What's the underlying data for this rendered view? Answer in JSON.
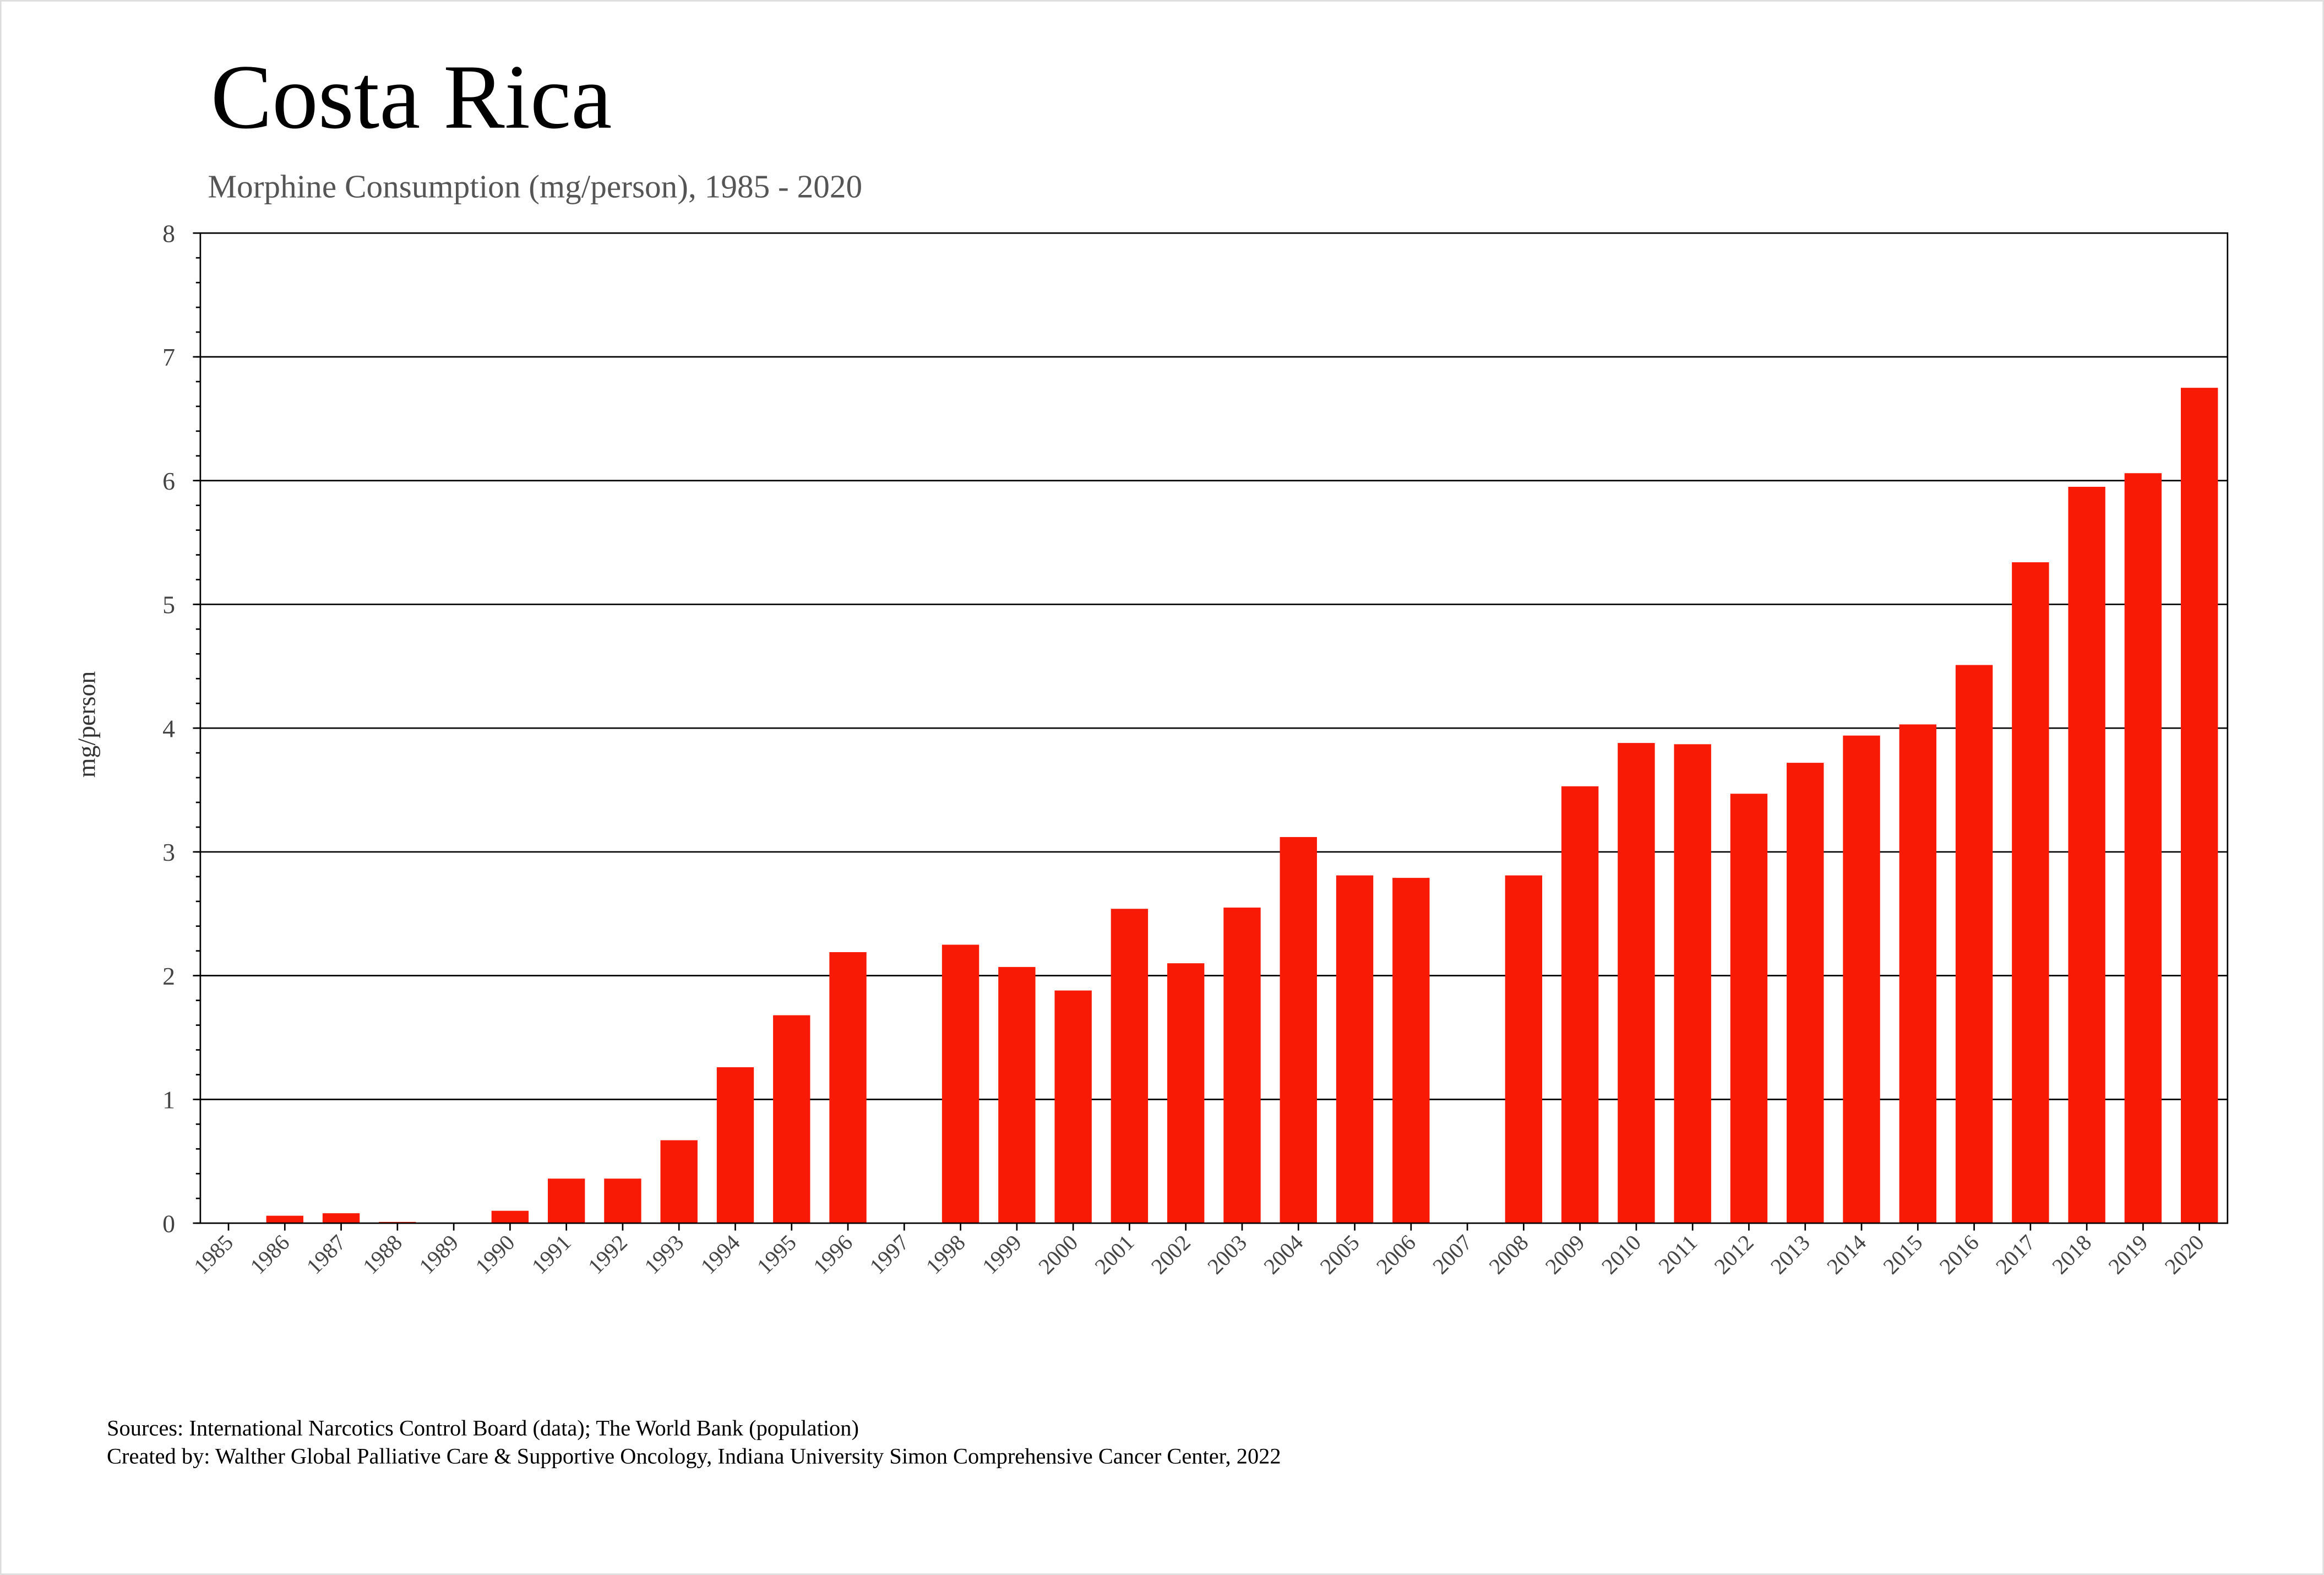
{
  "title": "Costa Rica",
  "subtitle": "Morphine Consumption (mg/person), 1985 - 2020",
  "footer": {
    "sources": "Sources: International Narcotics Control Board (data); The World Bank (population)",
    "created_by": "Created by: Walther  Global Palliative Care & Supportive Oncology, Indiana University Simon Comprehensive Cancer Center, 2022"
  },
  "chart_data": {
    "type": "bar",
    "title": "Costa Rica",
    "subtitle": "Morphine Consumption (mg/person), 1985 - 2020",
    "xlabel": "",
    "ylabel": "mg/person",
    "ylim": [
      0,
      8
    ],
    "yticks": [
      "0",
      "1",
      "2",
      "3",
      "4",
      "5",
      "6",
      "7",
      "8"
    ],
    "grid": true,
    "bar_color": "#f91a06",
    "categories": [
      "1985",
      "1986",
      "1987",
      "1988",
      "1989",
      "1990",
      "1991",
      "1992",
      "1993",
      "1994",
      "1995",
      "1996",
      "1997",
      "1998",
      "1999",
      "2000",
      "2001",
      "2002",
      "2003",
      "2004",
      "2005",
      "2006",
      "2007",
      "2008",
      "2009",
      "2010",
      "2011",
      "2012",
      "2013",
      "2014",
      "2015",
      "2016",
      "2017",
      "2018",
      "2019",
      "2020"
    ],
    "values": [
      0,
      0.06,
      0.08,
      0.01,
      0,
      0.1,
      0.36,
      0.36,
      0.67,
      1.26,
      1.68,
      2.19,
      0,
      2.25,
      2.07,
      1.88,
      2.54,
      2.1,
      2.55,
      3.12,
      2.81,
      2.79,
      0,
      2.81,
      3.53,
      3.88,
      3.87,
      3.47,
      3.72,
      3.94,
      4.03,
      4.51,
      5.34,
      5.95,
      6.06,
      6.75
    ]
  }
}
